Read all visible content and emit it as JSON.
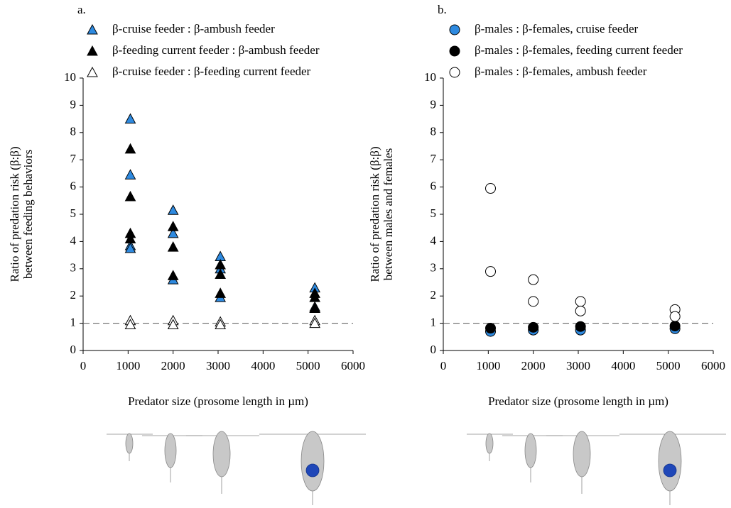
{
  "chart_data": [
    {
      "type": "scatter",
      "title": "a.",
      "y_label_lines": [
        "Ratio of predation risk (β:β)",
        "between feeding behaviors"
      ],
      "x_label": "Predator size (prosome length in µm)",
      "xlim": [
        0,
        6000
      ],
      "xticks": [
        0,
        1000,
        2000,
        3000,
        4000,
        5000,
        6000
      ],
      "ylim": [
        0,
        10
      ],
      "yticks": [
        0,
        1,
        2,
        3,
        4,
        5,
        6,
        7,
        8,
        9,
        10
      ],
      "hline": 1,
      "marker": "triangle",
      "series": [
        {
          "name": "β-cruise feeder : β-ambush feeder",
          "color": "#2e8ae0",
          "x": [
            1050,
            1050,
            1050,
            1050,
            2000,
            2000,
            2000,
            3050,
            3050,
            3050,
            5150,
            5150
          ],
          "values": [
            8.5,
            6.45,
            3.85,
            3.75,
            5.15,
            4.3,
            2.6,
            3.45,
            3.0,
            1.95,
            2.3,
            1.6
          ]
        },
        {
          "name": "β-feeding current feeder : β-ambush feeder",
          "color": "#000000",
          "x": [
            1050,
            1050,
            1050,
            1050,
            2000,
            2000,
            2000,
            3050,
            3050,
            3050,
            5150,
            5150,
            5150
          ],
          "values": [
            7.4,
            5.65,
            4.3,
            4.1,
            4.55,
            3.8,
            2.75,
            3.15,
            2.8,
            2.1,
            2.1,
            1.95,
            1.55
          ]
        },
        {
          "name": "β-cruise feeder : β-feeding current feeder",
          "color": "#ffffff",
          "x": [
            1050,
            1050,
            2000,
            2000,
            3050,
            3050,
            5150,
            5150
          ],
          "values": [
            1.1,
            0.95,
            1.1,
            0.95,
            1.05,
            0.95,
            1.1,
            1.0
          ]
        }
      ]
    },
    {
      "type": "scatter",
      "title": "b.",
      "y_label_lines": [
        "Ratio of predation risk (β:β)",
        "between males and females"
      ],
      "x_label": "Predator size (prosome length in µm)",
      "xlim": [
        0,
        6000
      ],
      "xticks": [
        0,
        1000,
        2000,
        3000,
        4000,
        5000,
        6000
      ],
      "ylim": [
        0,
        10
      ],
      "yticks": [
        0,
        1,
        2,
        3,
        4,
        5,
        6,
        7,
        8,
        9,
        10
      ],
      "hline": 1,
      "marker": "circle",
      "series": [
        {
          "name": "β-males : β-females, cruise feeder",
          "color": "#2e8ae0",
          "x": [
            1050,
            2000,
            3050,
            5150
          ],
          "values": [
            0.7,
            0.75,
            0.75,
            0.8
          ]
        },
        {
          "name": "β-males : β-females, feeding current feeder",
          "color": "#000000",
          "x": [
            1050,
            2000,
            3050,
            5150
          ],
          "values": [
            0.82,
            0.85,
            0.88,
            0.9
          ]
        },
        {
          "name": "β-males : β-females, ambush feeder",
          "color": "#ffffff",
          "x": [
            1050,
            1050,
            2000,
            2000,
            3050,
            3050,
            5150,
            5150
          ],
          "values": [
            5.95,
            2.9,
            2.6,
            1.8,
            1.8,
            1.45,
            1.5,
            1.25
          ]
        }
      ]
    }
  ]
}
